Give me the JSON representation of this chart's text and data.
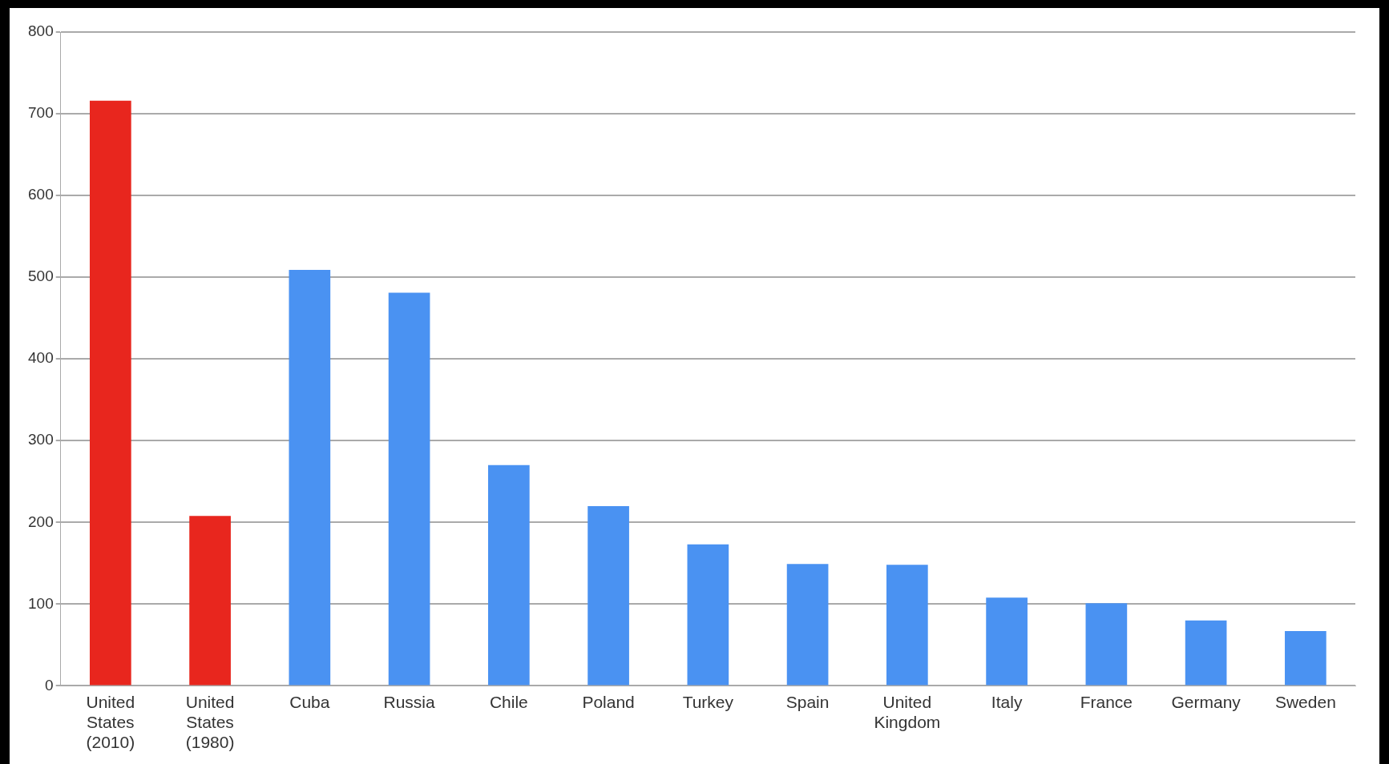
{
  "chart_data": {
    "type": "bar",
    "categories": [
      "United States (2010)",
      "United States (1980)",
      "Cuba",
      "Russia",
      "Chile",
      "Poland",
      "Turkey",
      "Spain",
      "United Kingdom",
      "Italy",
      "France",
      "Germany",
      "Sweden"
    ],
    "values": [
      716,
      208,
      509,
      481,
      270,
      220,
      173,
      149,
      148,
      108,
      101,
      80,
      67
    ],
    "colors": [
      "#e8261e",
      "#e8261e",
      "#4a92f2",
      "#4a92f2",
      "#4a92f2",
      "#4a92f2",
      "#4a92f2",
      "#4a92f2",
      "#4a92f2",
      "#4a92f2",
      "#4a92f2",
      "#4a92f2",
      "#4a92f2"
    ],
    "ylim": [
      0,
      800
    ],
    "yticks": [
      0,
      100,
      200,
      300,
      400,
      500,
      600,
      700,
      800
    ],
    "grid": "y",
    "legend": false
  }
}
